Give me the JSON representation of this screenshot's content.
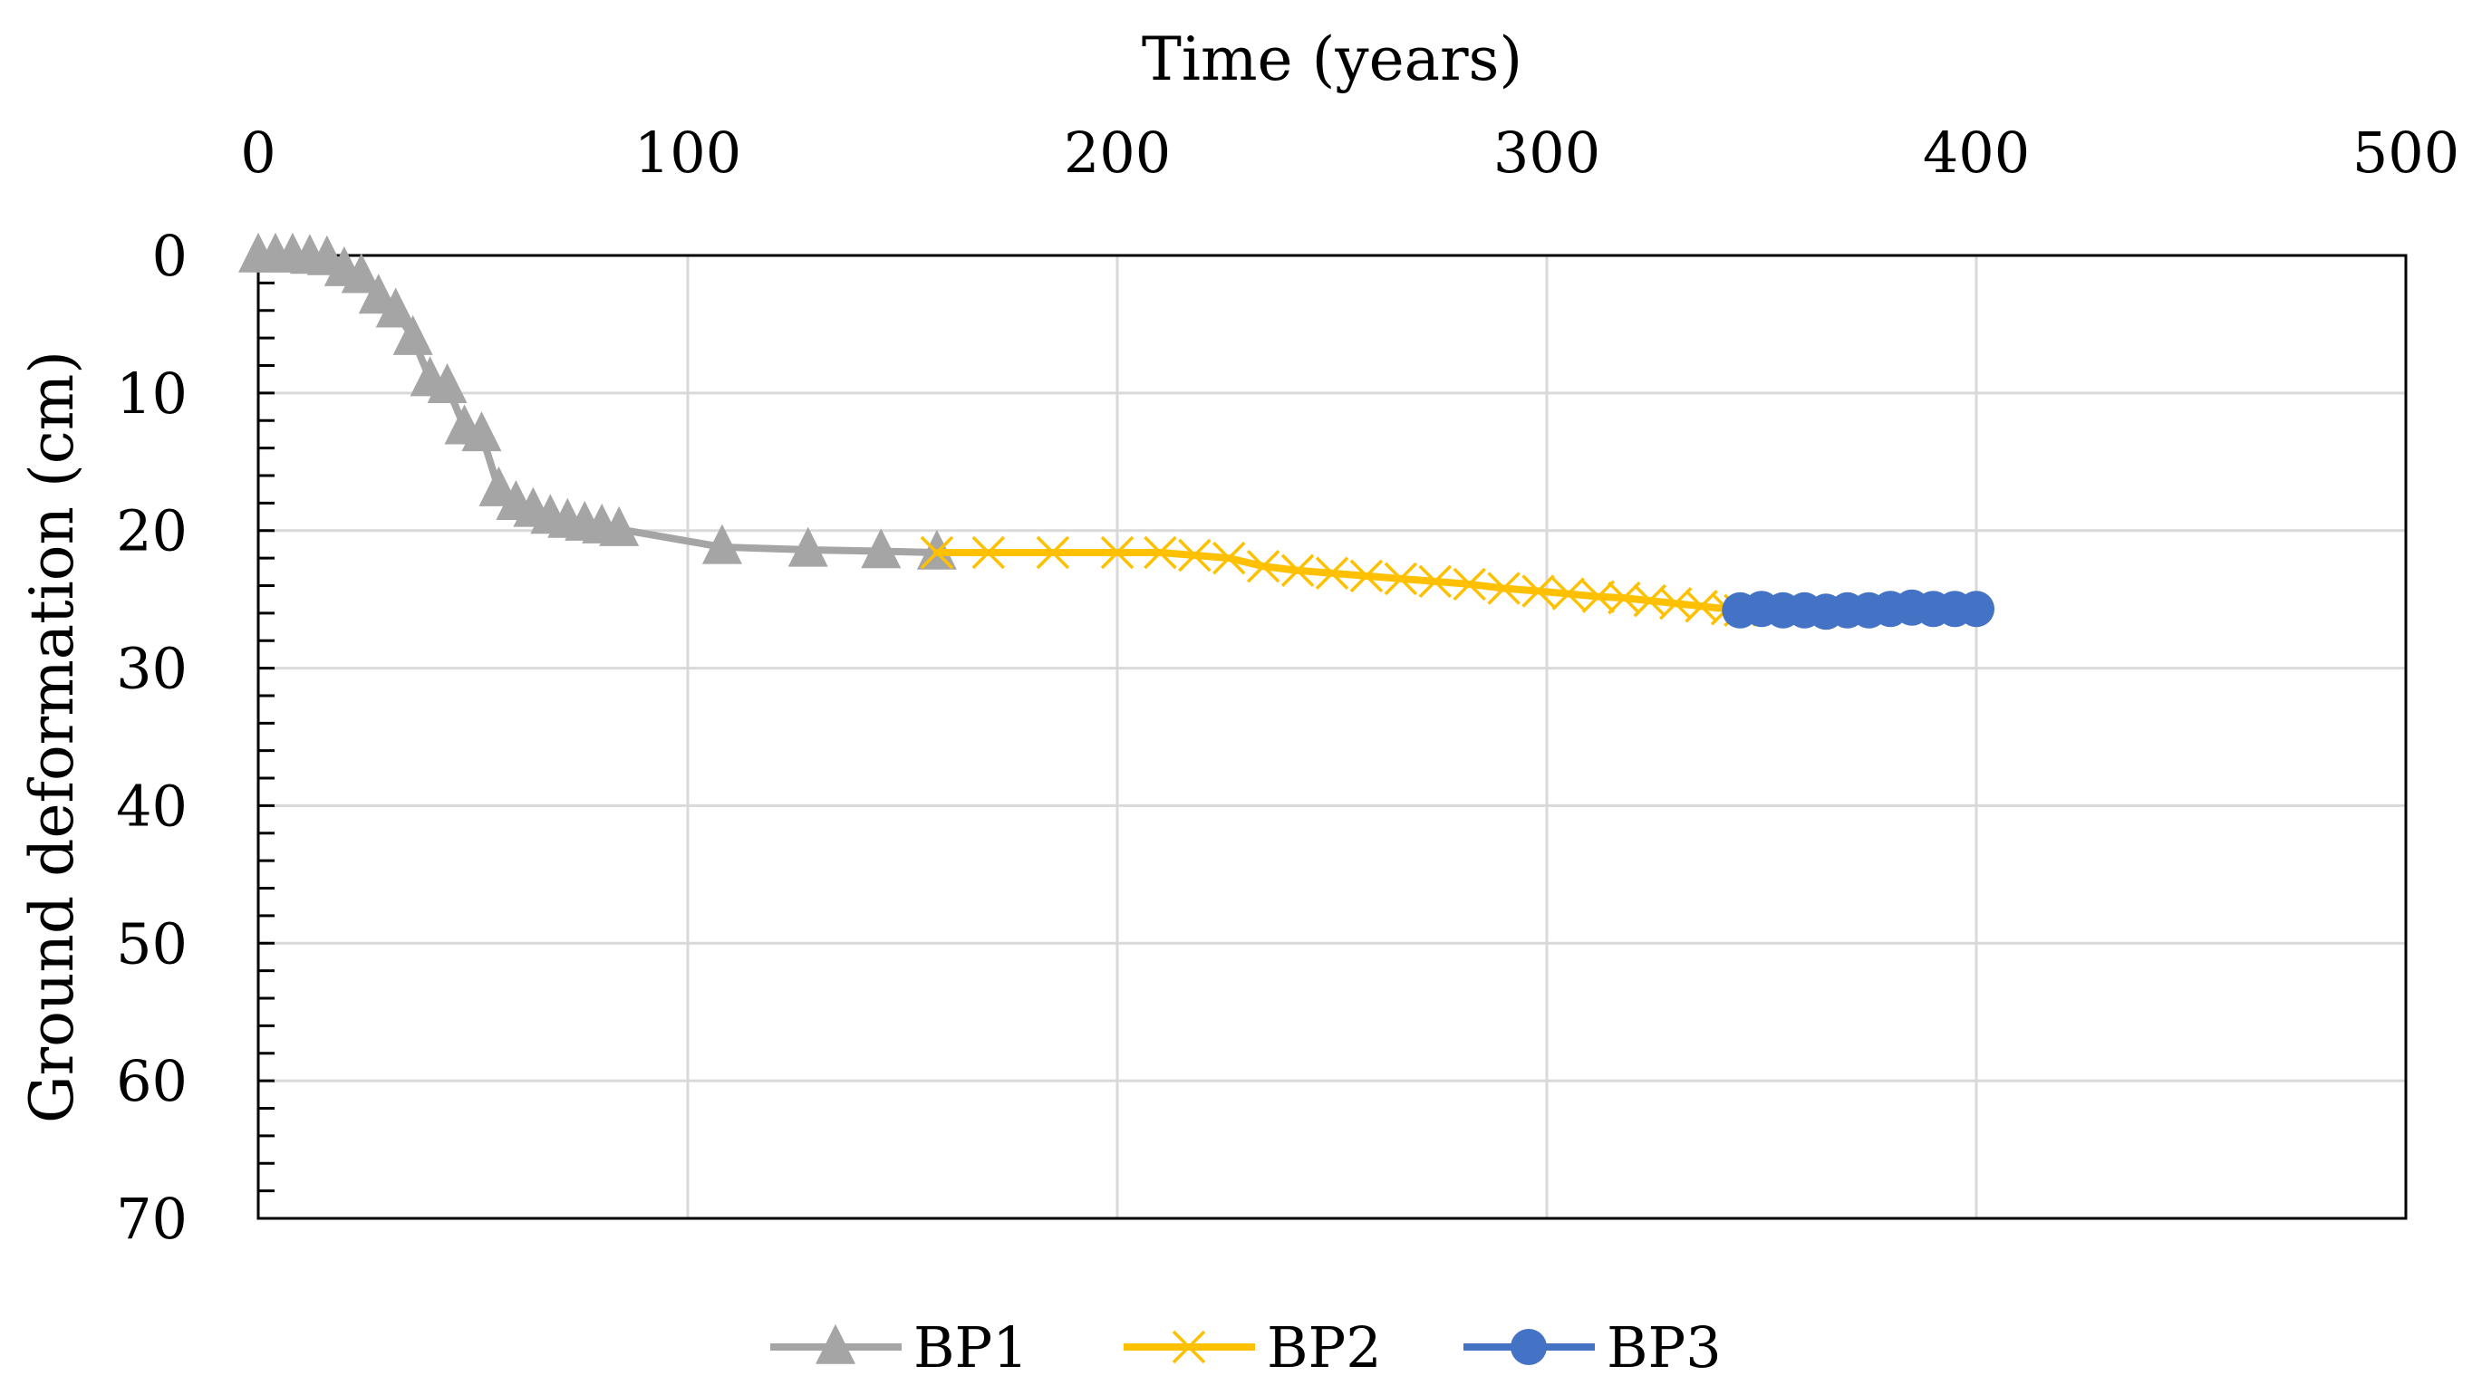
{
  "chart_data": {
    "type": "line",
    "title": "",
    "xlabel": "Time (years)",
    "ylabel": "Ground deformation (cm)",
    "x_axis_position": "top",
    "y_axis_inverted": true,
    "xlim": [
      0,
      500
    ],
    "ylim": [
      0,
      70
    ],
    "x_ticks": [
      0,
      100,
      200,
      300,
      400,
      500
    ],
    "y_ticks": [
      0,
      10,
      20,
      30,
      40,
      50,
      60,
      70
    ],
    "grid": true,
    "legend_position": "bottom",
    "series": [
      {
        "name": "BP1",
        "color": "#a5a5a5",
        "marker": "triangle",
        "x": [
          0,
          4,
          8,
          12,
          16,
          20,
          24,
          28,
          32,
          36,
          40,
          44,
          48,
          52,
          56,
          60,
          64,
          68,
          72,
          76,
          80,
          84,
          108,
          128,
          145,
          158
        ],
        "y": [
          0,
          0,
          0,
          0.1,
          0.2,
          1,
          1.5,
          3,
          4,
          6,
          9,
          9.5,
          12.5,
          13,
          17,
          18,
          18.5,
          19,
          19.3,
          19.5,
          19.7,
          19.9,
          21.2,
          21.4,
          21.5,
          21.6
        ]
      },
      {
        "name": "BP2",
        "color": "#ffc000",
        "marker": "x",
        "x": [
          158,
          170,
          185,
          200,
          210,
          218,
          226,
          234,
          242,
          250,
          258,
          266,
          274,
          282,
          290,
          298,
          305,
          312,
          318,
          324,
          330,
          336,
          342,
          345
        ],
        "y": [
          21.6,
          21.6,
          21.6,
          21.6,
          21.6,
          21.8,
          22,
          22.6,
          22.9,
          23.1,
          23.3,
          23.5,
          23.7,
          23.9,
          24.2,
          24.4,
          24.6,
          24.8,
          24.9,
          25.1,
          25.3,
          25.5,
          25.7,
          25.8
        ]
      },
      {
        "name": "BP3",
        "color": "#4472c4",
        "marker": "circle",
        "x": [
          345,
          350,
          355,
          360,
          365,
          370,
          375,
          380,
          385,
          390,
          395,
          400
        ],
        "y": [
          25.8,
          25.7,
          25.8,
          25.8,
          25.9,
          25.8,
          25.8,
          25.7,
          25.6,
          25.7,
          25.7,
          25.7
        ]
      }
    ]
  }
}
